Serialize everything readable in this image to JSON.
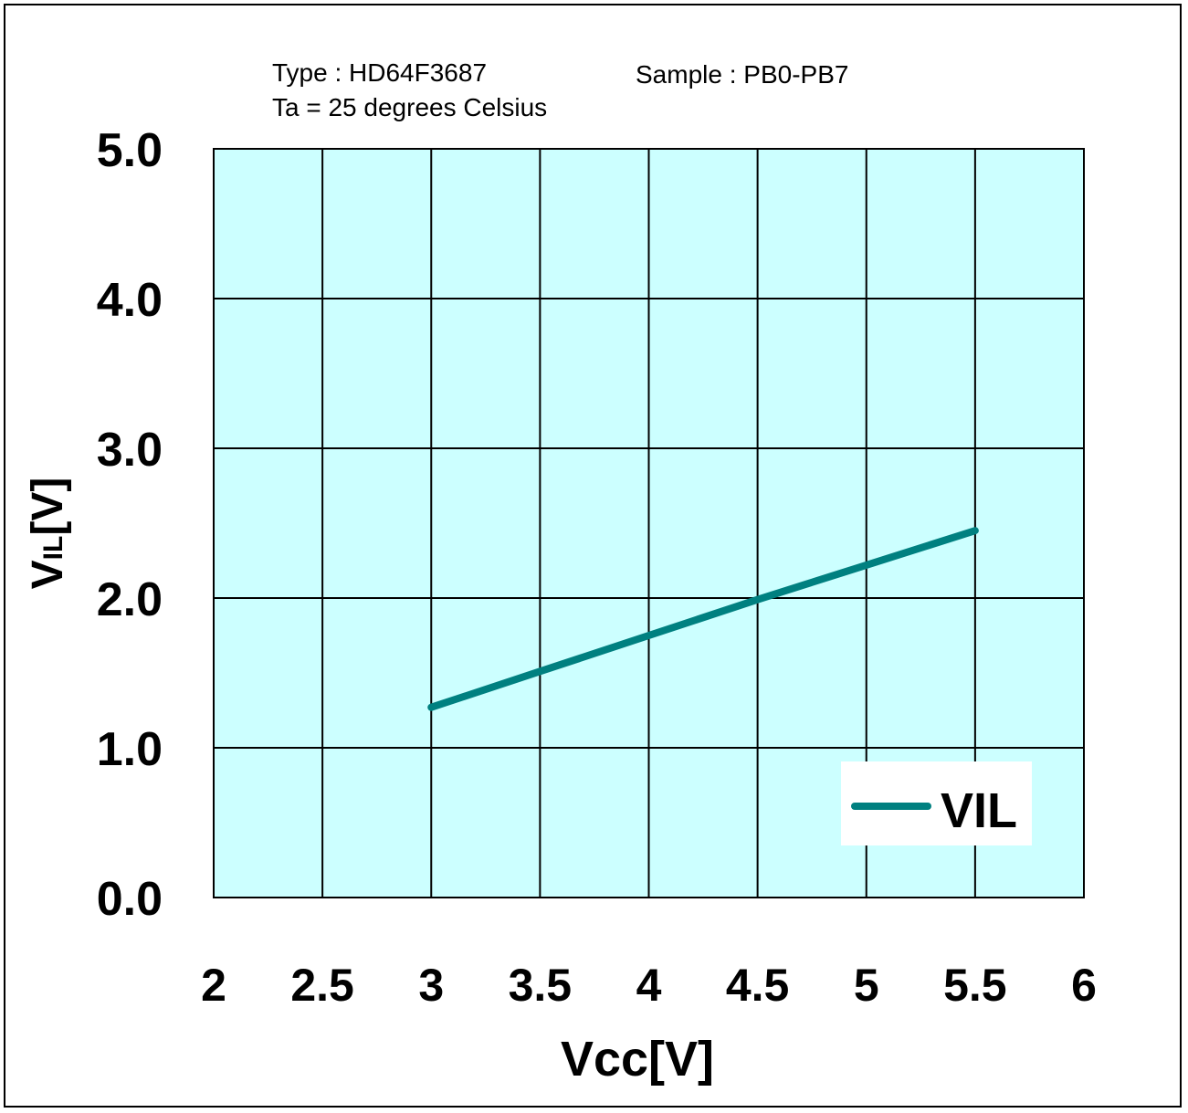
{
  "info": {
    "type_label": "Type : HD64F3687",
    "temperature_label": "Ta = 25 degrees Celsius",
    "sample_label": "Sample : PB0-PB7"
  },
  "chart_data": {
    "type": "line",
    "xlabel": "Vcc[V]",
    "ylabel_main": "V",
    "ylabel_sub": "IL",
    "ylabel_unit": "[V]",
    "xlim": [
      2,
      6
    ],
    "ylim": [
      0,
      5
    ],
    "x_ticks": [
      "2",
      "2.5",
      "3",
      "3.5",
      "4",
      "4.5",
      "5",
      "5.5",
      "6"
    ],
    "y_ticks": [
      "0.0",
      "1.0",
      "2.0",
      "3.0",
      "4.0",
      "5.0"
    ],
    "grid": true,
    "legend_position": "bottom-right",
    "series": [
      {
        "name": "VIL",
        "color": "#008080",
        "x": [
          3,
          3.5,
          4,
          4.5,
          5,
          5.5
        ],
        "y": [
          1.27,
          1.51,
          1.75,
          1.99,
          2.22,
          2.45
        ]
      }
    ],
    "plot_background": "#ccffff"
  }
}
